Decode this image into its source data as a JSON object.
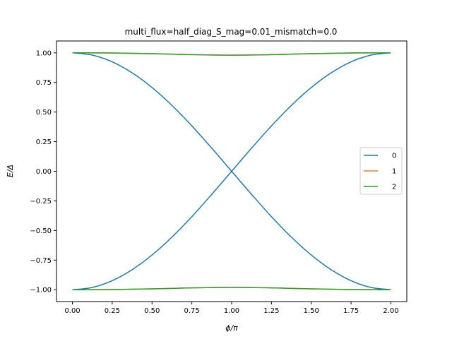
{
  "chart_data": {
    "type": "line",
    "title": "multi_flux=half_diag_S_mag=0.01_mismatch=0.0",
    "xlabel": "ϕ/π",
    "ylabel": "E/Δ",
    "xlim": [
      -0.1,
      2.1
    ],
    "ylim": [
      -1.1,
      1.1
    ],
    "xticks": [
      0.0,
      0.25,
      0.5,
      0.75,
      1.0,
      1.25,
      1.5,
      1.75,
      2.0
    ],
    "xtick_labels": [
      "0.00",
      "0.25",
      "0.50",
      "0.75",
      "1.00",
      "1.25",
      "1.50",
      "1.75",
      "2.00"
    ],
    "yticks": [
      -1.0,
      -0.75,
      -0.5,
      -0.25,
      0.0,
      0.25,
      0.5,
      0.75,
      1.0
    ],
    "ytick_labels": [
      "−1.00",
      "−0.75",
      "−0.50",
      "−0.25",
      "0.00",
      "0.25",
      "0.50",
      "0.75",
      "1.00"
    ],
    "grid": false,
    "legend_position": "right",
    "x": [
      0.0,
      0.125,
      0.25,
      0.375,
      0.5,
      0.625,
      0.75,
      0.875,
      1.0,
      1.125,
      1.25,
      1.375,
      1.5,
      1.625,
      1.75,
      1.875,
      2.0
    ],
    "series": [
      {
        "name": "0",
        "color": "#1f77b4",
        "lines": [
          [
            1.0,
            0.981,
            0.924,
            0.831,
            0.707,
            0.556,
            0.383,
            0.195,
            0.0,
            -0.195,
            -0.383,
            -0.556,
            -0.707,
            -0.831,
            -0.924,
            -0.981,
            -1.0
          ],
          [
            -1.0,
            -0.981,
            -0.924,
            -0.831,
            -0.707,
            -0.556,
            -0.383,
            -0.195,
            0.0,
            0.195,
            0.383,
            0.556,
            0.707,
            0.831,
            0.924,
            0.981,
            1.0
          ]
        ]
      },
      {
        "name": "1",
        "color": "#ff7f0e",
        "lines": [
          [
            1.0,
            0.9997,
            0.999,
            0.9957,
            0.9928,
            0.9887,
            0.9843,
            0.9813,
            0.98,
            0.9813,
            0.9843,
            0.9887,
            0.9928,
            0.9957,
            0.999,
            0.9997,
            1.0
          ],
          [
            -1.0,
            -0.9997,
            -0.999,
            -0.9957,
            -0.9928,
            -0.9887,
            -0.9843,
            -0.9813,
            -0.98,
            -0.9813,
            -0.9843,
            -0.9887,
            -0.9928,
            -0.9957,
            -0.999,
            -0.9997,
            -1.0
          ]
        ]
      },
      {
        "name": "2",
        "color": "#2ca02c",
        "lines": [
          [
            1.0,
            0.9997,
            0.999,
            0.9957,
            0.9928,
            0.9887,
            0.9843,
            0.9813,
            0.98,
            0.9813,
            0.9843,
            0.9887,
            0.9928,
            0.9957,
            0.999,
            0.9997,
            1.0
          ],
          [
            -1.0,
            -0.9997,
            -0.999,
            -0.9957,
            -0.9928,
            -0.9887,
            -0.9843,
            -0.9813,
            -0.98,
            -0.9813,
            -0.9843,
            -0.9887,
            -0.9928,
            -0.9957,
            -0.999,
            -0.9997,
            -1.0
          ]
        ]
      }
    ]
  }
}
